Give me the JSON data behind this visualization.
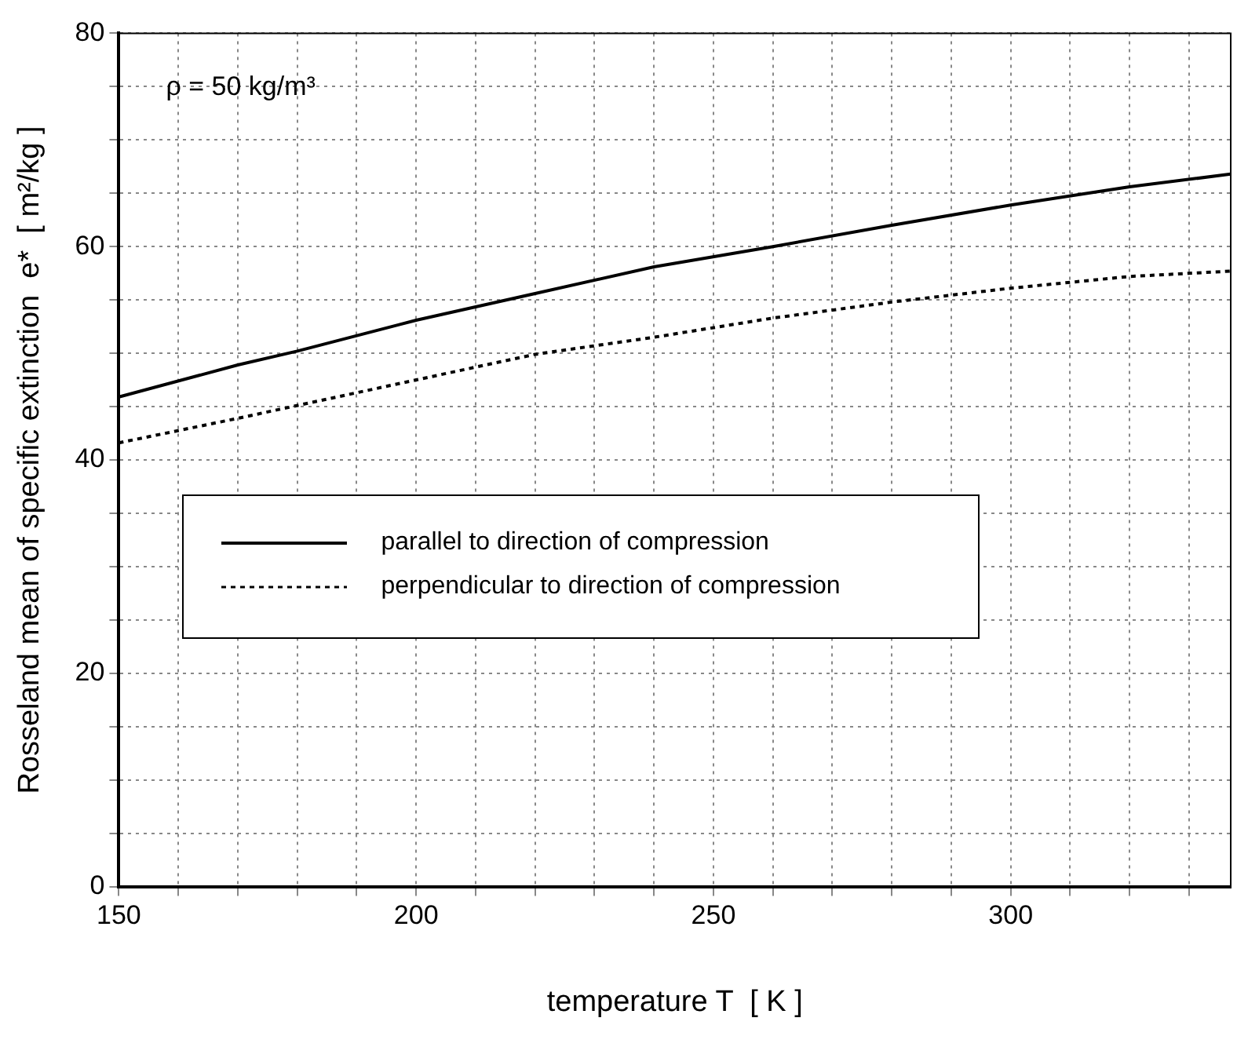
{
  "chart_data": {
    "type": "line",
    "xlabel": "temperature T  [ K ]",
    "ylabel": "Rosseland mean of specific extinction  e*  [ m²/kg ]",
    "annotations": [
      "ρ = 50 kg/m³"
    ],
    "x": [
      150,
      170,
      180,
      200,
      220,
      240,
      260,
      280,
      300,
      320,
      337
    ],
    "series": [
      {
        "name": "parallel to direction of compression",
        "color": "#000000",
        "line_style": "solid",
        "values": [
          45.9,
          48.9,
          50.2,
          53.1,
          55.6,
          58.1,
          60,
          62,
          63.9,
          65.6,
          66.8
        ]
      },
      {
        "name": "perpendicular to direction of compression",
        "color": "#000000",
        "line_style": "dotted",
        "values": [
          41.6,
          43.9,
          45.1,
          47.5,
          49.9,
          51.5,
          53.3,
          54.8,
          56.1,
          57.2,
          57.7
        ]
      }
    ],
    "xlim": [
      150,
      337
    ],
    "xticks": [
      150,
      {
        "value": 160,
        "label": null
      },
      {
        "value": 170,
        "label": null
      },
      {
        "value": 180,
        "label": null
      },
      {
        "value": 190,
        "label": null
      },
      200,
      {
        "value": 210,
        "label": null
      },
      {
        "value": 220,
        "label": null
      },
      {
        "value": 230,
        "label": null
      },
      {
        "value": 240,
        "label": null
      },
      250,
      {
        "value": 260,
        "label": null
      },
      {
        "value": 270,
        "label": null
      },
      {
        "value": 280,
        "label": null
      },
      {
        "value": 290,
        "label": null
      },
      300,
      {
        "value": 310,
        "label": null
      },
      {
        "value": 320,
        "label": null
      },
      {
        "value": 330,
        "label": null
      }
    ],
    "ylim": [
      0,
      80
    ],
    "yticks": [
      0,
      {
        "value": 5,
        "label": null
      },
      {
        "value": 10,
        "label": null
      },
      {
        "value": 15,
        "label": null
      },
      20,
      {
        "value": 25,
        "label": null
      },
      {
        "value": 30,
        "label": null
      },
      {
        "value": 35,
        "label": null
      },
      40,
      {
        "value": 45,
        "label": null
      },
      {
        "value": 50,
        "label": null
      },
      {
        "value": 55,
        "label": null
      },
      60,
      {
        "value": 65,
        "label": null
      },
      {
        "value": 70,
        "label": null
      },
      {
        "value": 75,
        "label": null
      },
      80
    ],
    "grid": true,
    "legend": "bottom left",
    "marker": "none"
  }
}
